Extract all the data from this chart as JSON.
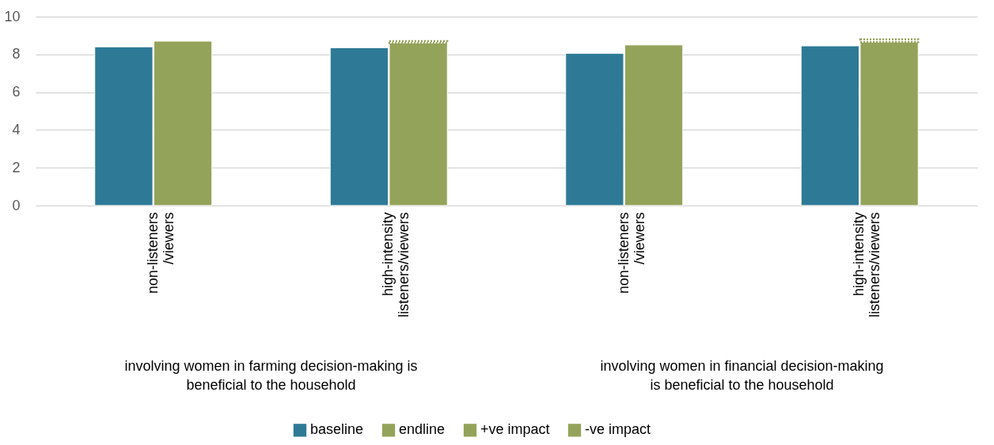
{
  "chart_data": {
    "type": "bar",
    "categories": [
      "non-listeners /viewers",
      "high-intensity listeners/viewers",
      "non-listeners /viewers",
      "high-intensity listeners/viewers"
    ],
    "series": [
      {
        "name": "baseline",
        "color": "#2e7a96",
        "values": [
          8.4,
          8.35,
          8.05,
          8.45
        ]
      },
      {
        "name": "endline",
        "color": "#94a35a",
        "values": [
          8.7,
          8.6,
          8.5,
          8.65
        ]
      },
      {
        "name": "+ve impact",
        "color": "#94a35a",
        "values": [
          null,
          null,
          null,
          null
        ]
      },
      {
        "name": "-ve impact",
        "color": "#94a35a",
        "line_style": "dotted",
        "base": [
          null,
          8.6,
          null,
          8.65
        ],
        "values": [
          null,
          0.1,
          null,
          0.15
        ]
      }
    ],
    "ylim": [
      0,
      10
    ],
    "yticks": [
      0,
      2,
      4,
      6,
      8,
      10
    ],
    "grid": "y",
    "legend": "bottom",
    "annotations": [
      "involving women in farming decision-making is beneficial to the household",
      "involving women in financial decision-making is beneficial to the household"
    ]
  }
}
